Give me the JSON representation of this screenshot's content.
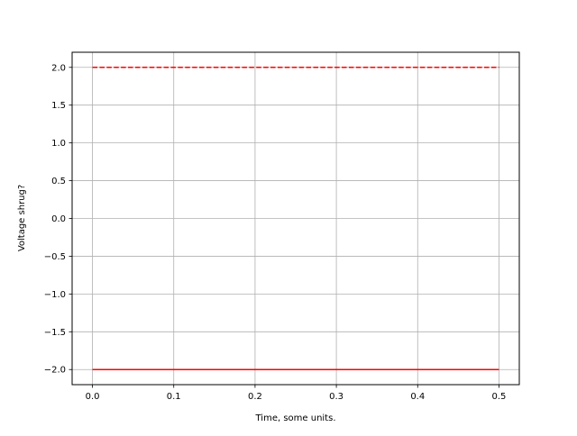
{
  "chart_data": {
    "type": "line",
    "title": "",
    "xlabel": "Time, some units.",
    "ylabel": "Voltage shrug?",
    "xlim": [
      -0.025,
      0.525
    ],
    "ylim": [
      -2.2,
      2.2
    ],
    "grid": true,
    "xticks": [
      0.0,
      0.1,
      0.2,
      0.3,
      0.4,
      0.5
    ],
    "xtick_labels": [
      "0.0",
      "0.1",
      "0.2",
      "0.3",
      "0.4",
      "0.5"
    ],
    "yticks": [
      -2.0,
      -1.5,
      -1.0,
      -0.5,
      0.0,
      0.5,
      1.0,
      1.5,
      2.0
    ],
    "ytick_labels": [
      "−2.0",
      "−1.5",
      "−1.0",
      "−0.5",
      "0.0",
      "0.5",
      "1.0",
      "1.5",
      "2.0"
    ],
    "series": [
      {
        "x": [
          0.0,
          0.5
        ],
        "y": [
          2.0,
          2.0
        ],
        "color": "#ff0000",
        "style": "dashed"
      },
      {
        "x": [
          0.0,
          0.5
        ],
        "y": [
          -2.0,
          -2.0
        ],
        "color": "#ff0000",
        "style": "solid"
      }
    ]
  }
}
